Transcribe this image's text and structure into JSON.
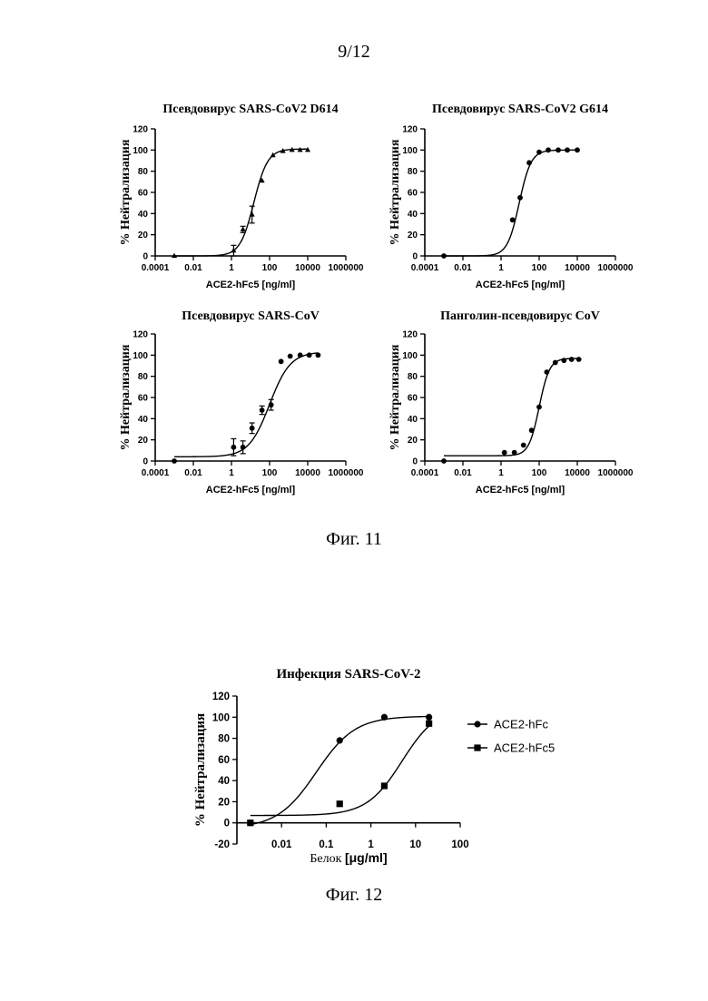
{
  "page": {
    "number": "9/12"
  },
  "figure11": {
    "caption": "Фиг. 11"
  },
  "figure12": {
    "caption": "Фиг. 12"
  },
  "colors": {
    "ink": "#000000",
    "background": "#ffffff"
  },
  "chart_data": [
    {
      "type": "scatter",
      "title": "Псевдовирус SARS-CoV2 D614",
      "xlabel": "ACE2-hFc5 [ng/ml]",
      "ylabel": "% Нейтрализация",
      "xscale": "log",
      "xlim": [
        0.0001,
        1000000
      ],
      "ylim": [
        0,
        120
      ],
      "xticks": [
        "0.0001",
        "0.01",
        "1",
        "100",
        "10000",
        "1000000"
      ],
      "yticks": [
        "0",
        "20",
        "40",
        "60",
        "80",
        "100",
        "120"
      ],
      "series": [
        {
          "marker": "triangle",
          "x": [
            0.001,
            1.3,
            4,
            12,
            40,
            150,
            500,
            1500,
            4000,
            10000
          ],
          "y": [
            0,
            5,
            25,
            39,
            71,
            95,
            99,
            100,
            100,
            100
          ],
          "err": [
            0,
            5,
            3,
            8,
            0,
            0,
            0,
            0,
            0,
            0
          ],
          "fit": {
            "bottom": 0,
            "top": 101,
            "ec50": 15,
            "hill": 1.2
          }
        }
      ]
    },
    {
      "type": "scatter",
      "title": "Псевдовирус SARS-CoV2 G614",
      "xlabel": "ACE2-hFc5 [ng/ml]",
      "ylabel": "% Нейтрализация",
      "xscale": "log",
      "xlim": [
        0.0001,
        1000000
      ],
      "ylim": [
        0,
        120
      ],
      "xticks": [
        "0.0001",
        "0.01",
        "1",
        "100",
        "10000",
        "1000000"
      ],
      "yticks": [
        "0",
        "20",
        "40",
        "60",
        "80",
        "100",
        "120"
      ],
      "series": [
        {
          "marker": "circle",
          "x": [
            0.001,
            4,
            10,
            30,
            100,
            300,
            1000,
            3000,
            10000
          ],
          "y": [
            0,
            34,
            55,
            88,
            98,
            100,
            100,
            100,
            100
          ],
          "err": [
            0,
            0,
            0,
            0,
            0,
            0,
            0,
            0,
            0
          ],
          "fit": {
            "bottom": 0,
            "top": 100,
            "ec50": 9,
            "hill": 1.4
          }
        }
      ]
    },
    {
      "type": "scatter",
      "title": "Псевдовирус SARS-CoV",
      "xlabel": "ACE2-hFc5 [ng/ml]",
      "ylabel": "% Нейтрализация",
      "xscale": "log",
      "xlim": [
        0.0001,
        1000000
      ],
      "ylim": [
        0,
        120
      ],
      "xticks": [
        "0.0001",
        "0.01",
        "1",
        "100",
        "10000",
        "1000000"
      ],
      "yticks": [
        "0",
        "20",
        "40",
        "60",
        "80",
        "100",
        "120"
      ],
      "series": [
        {
          "marker": "circle",
          "x": [
            0.001,
            1.3,
            4,
            12,
            40,
            120,
            400,
            1200,
            4000,
            12000,
            35000
          ],
          "y": [
            0,
            13,
            13,
            31,
            48,
            53,
            94,
            99,
            100,
            100,
            100
          ],
          "err": [
            0,
            8,
            6,
            5,
            4,
            5,
            0,
            0,
            0,
            0,
            0
          ],
          "fit": {
            "bottom": 4,
            "top": 103,
            "ec50": 100,
            "hill": 0.8
          }
        }
      ]
    },
    {
      "type": "scatter",
      "title": "Панголин-псевдовирус CoV",
      "xlabel": "ACE2-hFc5 [ng/ml]",
      "ylabel": "% Нейтрализация",
      "xscale": "log",
      "xlim": [
        0.0001,
        1000000
      ],
      "ylim": [
        0,
        120
      ],
      "xticks": [
        "0.0001",
        "0.01",
        "1",
        "100",
        "10000",
        "1000000"
      ],
      "yticks": [
        "0",
        "20",
        "40",
        "60",
        "80",
        "100",
        "120"
      ],
      "series": [
        {
          "marker": "circle",
          "x": [
            0.001,
            1.5,
            5,
            15,
            40,
            100,
            250,
            700,
            2000,
            5000,
            12000
          ],
          "y": [
            0,
            8,
            8,
            15,
            29,
            51,
            84,
            93,
            95,
            96,
            96
          ],
          "err": [
            0,
            0,
            0,
            0,
            0,
            0,
            0,
            0,
            0,
            0,
            0
          ],
          "fit": {
            "bottom": 5,
            "top": 97,
            "ec50": 100,
            "hill": 1.6
          }
        }
      ]
    },
    {
      "type": "scatter",
      "title": "Инфекция SARS-CoV-2",
      "xlabel_text": "Белок ",
      "xlabel_unit": "[μg/ml]",
      "ylabel": "% Нейтрализация",
      "xscale": "log",
      "xlim": [
        0.001,
        100
      ],
      "ylim": [
        -20,
        120
      ],
      "xticks": [
        "0.01",
        "0.1",
        "1",
        "10",
        "100"
      ],
      "yticks": [
        "-20",
        "0",
        "20",
        "40",
        "60",
        "80",
        "100",
        "120"
      ],
      "legend": {
        "position": "right"
      },
      "series": [
        {
          "name": "ACE2-hFc",
          "marker": "circle",
          "x": [
            0.002,
            0.2,
            2,
            20
          ],
          "y": [
            0,
            78,
            100,
            100
          ],
          "fit": {
            "bottom": -5,
            "top": 101,
            "ec50": 0.06,
            "hill": 1.0
          }
        },
        {
          "name": "ACE2-hFc5",
          "marker": "square",
          "x": [
            0.002,
            0.2,
            2,
            20
          ],
          "y": [
            0,
            18,
            35,
            94
          ],
          "fit": {
            "bottom": 7,
            "top": 110,
            "ec50": 5,
            "hill": 1.1
          }
        }
      ]
    }
  ]
}
